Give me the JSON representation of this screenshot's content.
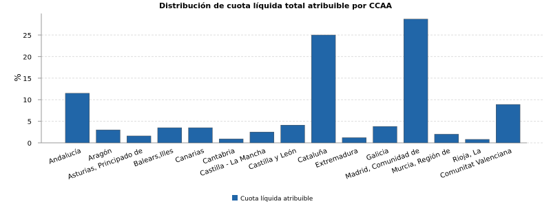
{
  "chart_data": {
    "type": "bar",
    "title": "Distribución de cuota líquida total atribuible por CCAA",
    "y_label": "%",
    "categories": [
      "Andalucía",
      "Aragón",
      "Asturias, Principado de",
      "Balears,Illes",
      "Canarias",
      "Cantabria",
      "Castilla - La Mancha",
      "Castilla y León",
      "Cataluña",
      "Extremadura",
      "Galicia",
      "Madrid, Comunidad de",
      "Murcia, Región de",
      "Rioja, La",
      "Comunitat Valenciana"
    ],
    "series": [
      {
        "name": "Cuota líquida atribuible",
        "color": "#2166a8",
        "values": [
          11.5,
          3.0,
          1.6,
          3.5,
          3.5,
          0.9,
          2.5,
          4.1,
          25.0,
          1.2,
          3.8,
          28.7,
          2.0,
          0.8,
          8.9
        ]
      }
    ],
    "ylim": [
      0,
      30
    ],
    "yticks": [
      0,
      5,
      10,
      15,
      20,
      25
    ],
    "grid": true
  }
}
